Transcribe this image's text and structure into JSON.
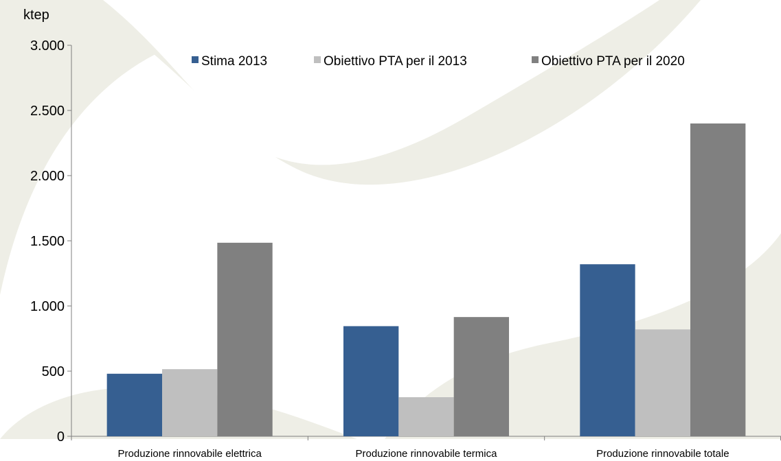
{
  "chart_data": {
    "type": "bar",
    "unit_label": "ktep",
    "categories": [
      "Produzione rinnovabile elettrica",
      "Produzione rinnovabile termica",
      "Produzione rinnovabile totale"
    ],
    "series": [
      {
        "name": "Stima 2013",
        "color": "#365f91",
        "values": [
          480,
          845,
          1320
        ]
      },
      {
        "name": "Obiettivo PTA per il 2013",
        "color": "#bfbfbf",
        "values": [
          515,
          300,
          820
        ]
      },
      {
        "name": "Obiettivo PTA per il 2020",
        "color": "#808080",
        "values": [
          1485,
          915,
          2400
        ]
      }
    ],
    "ylim": [
      0,
      3000
    ],
    "yticks": [
      {
        "value": 0,
        "label": "0"
      },
      {
        "value": 500,
        "label": "500"
      },
      {
        "value": 1000,
        "label": "1.000"
      },
      {
        "value": 1500,
        "label": "1.500"
      },
      {
        "value": 2000,
        "label": "2.000"
      },
      {
        "value": 2500,
        "label": "2.500"
      },
      {
        "value": 3000,
        "label": "3.000"
      }
    ],
    "grid": false,
    "legend_position": "top"
  }
}
